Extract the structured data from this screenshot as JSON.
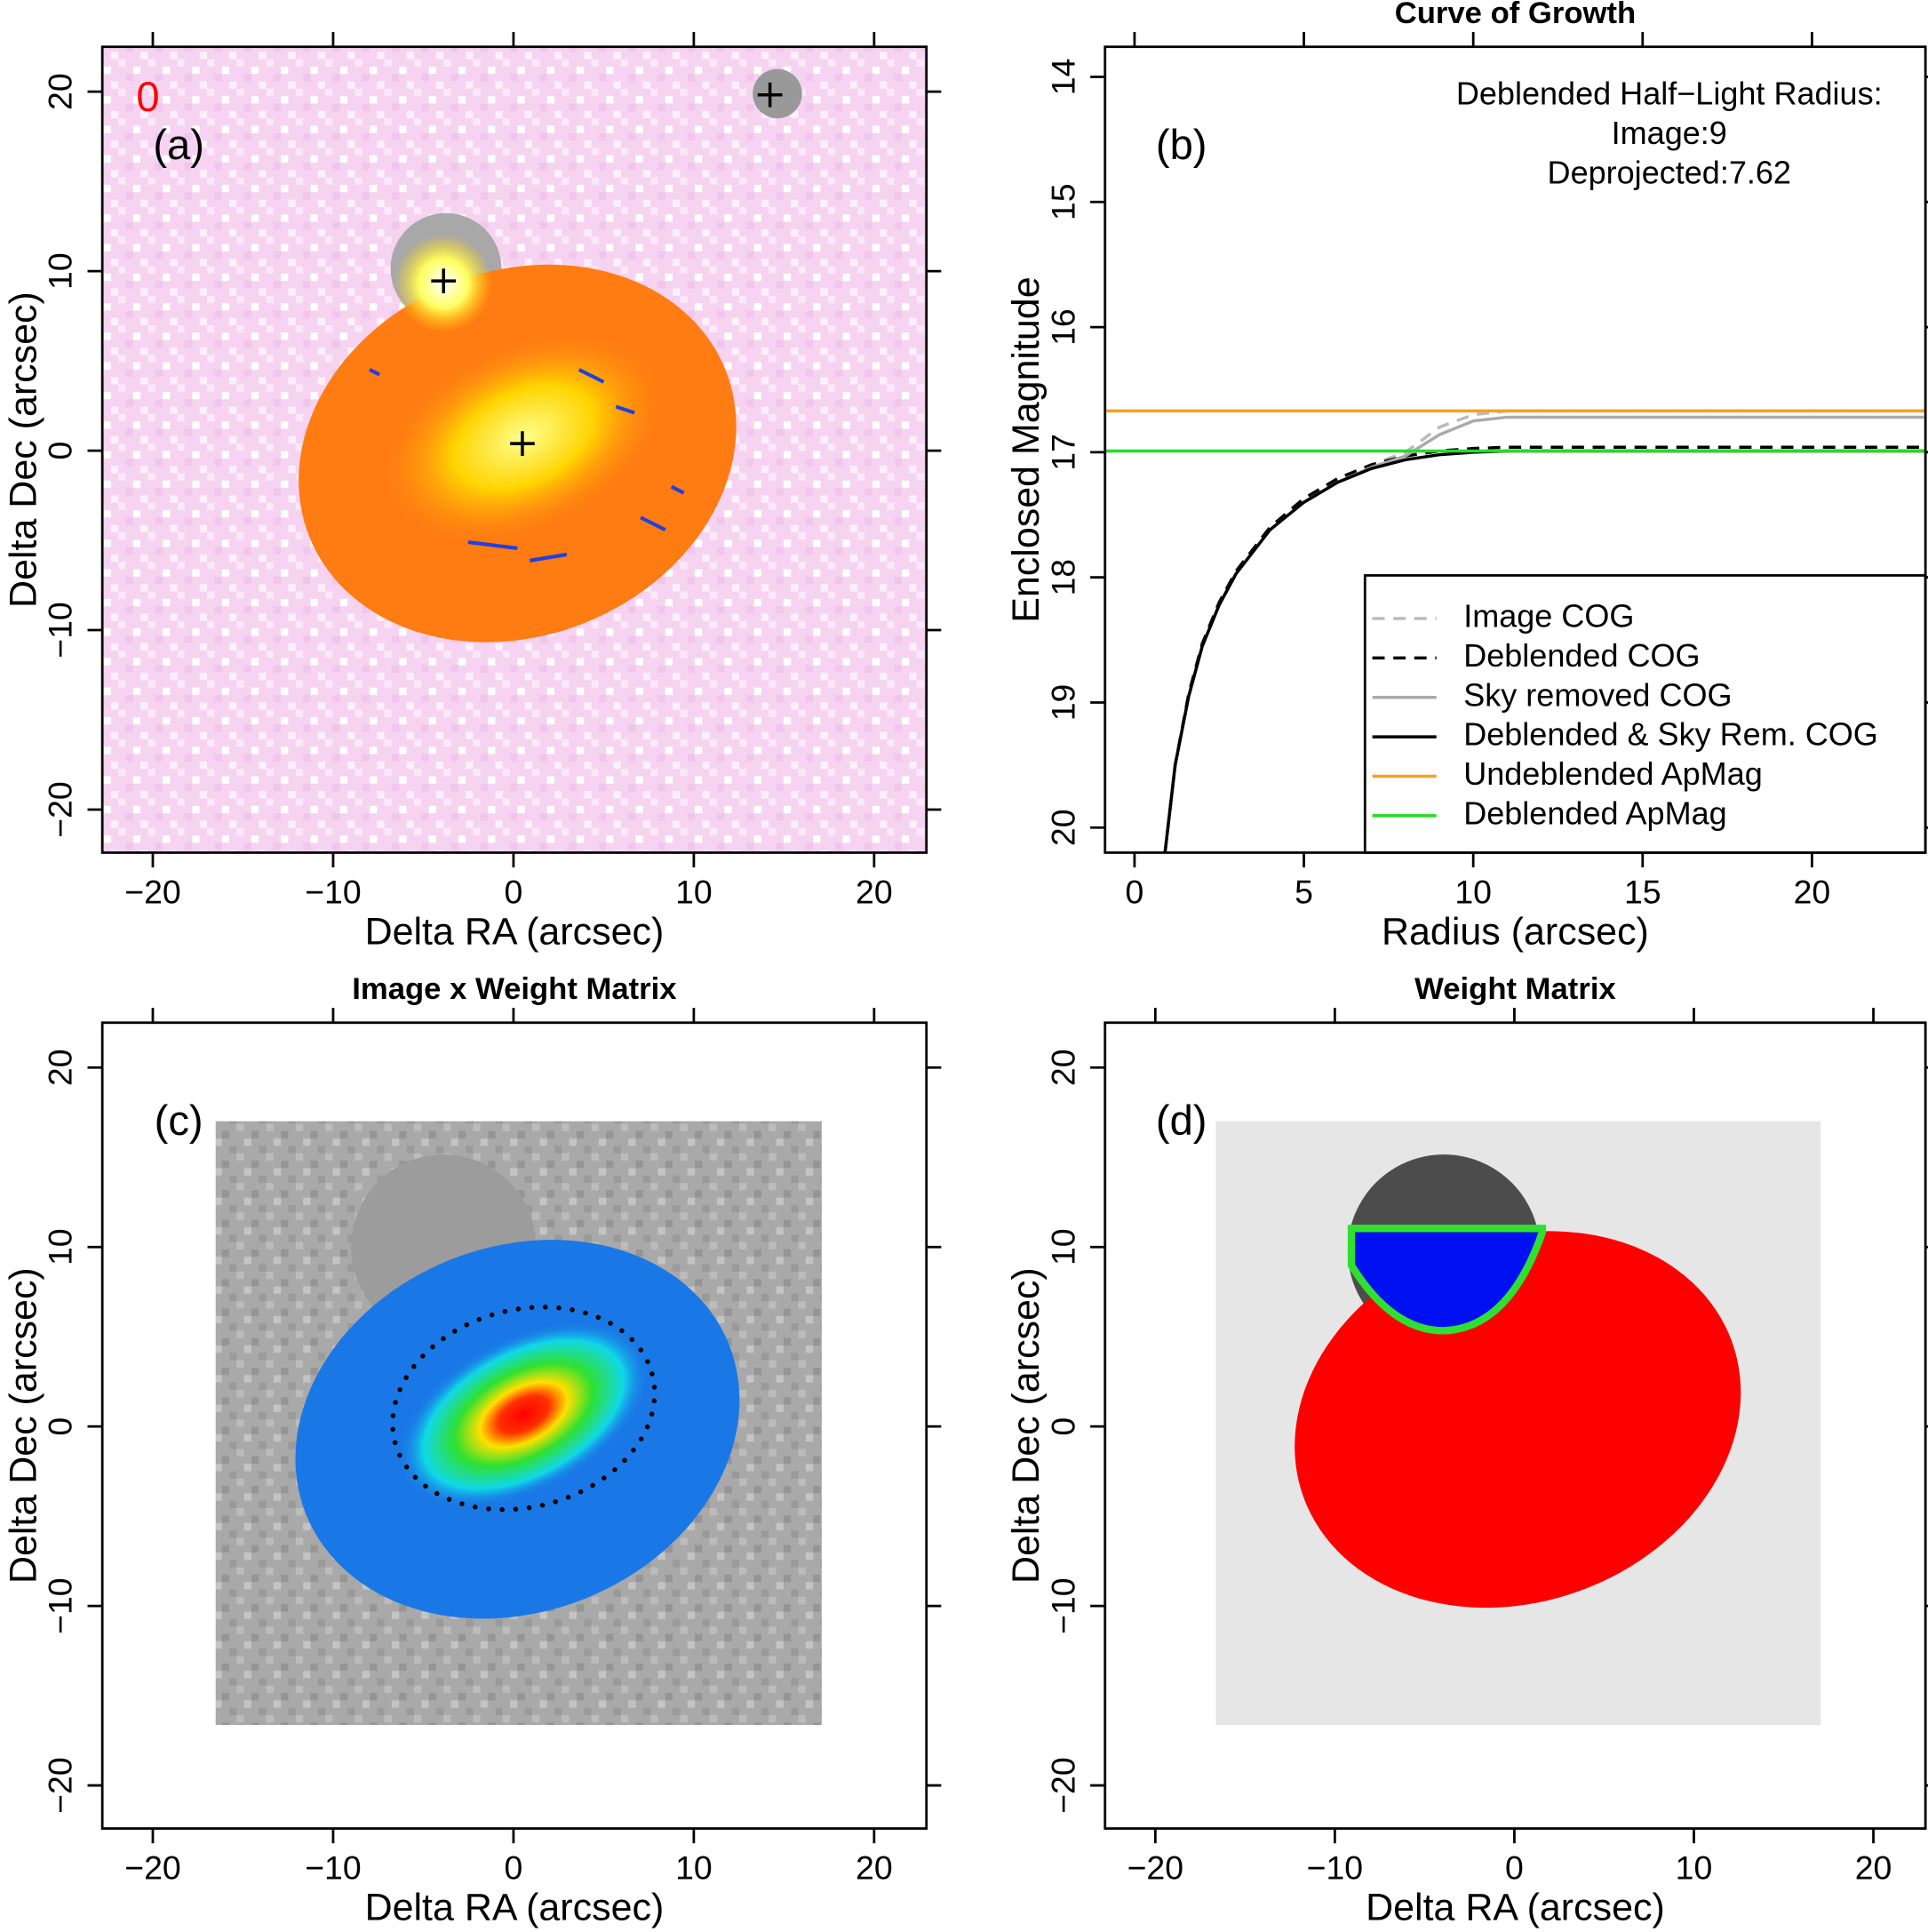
{
  "chart_data": [
    {
      "type": "image",
      "panel_label": "(a)",
      "annotation": "0",
      "xlabel": "Delta RA (arcsec)",
      "ylabel": "Delta Dec (arcsec)",
      "xlim": [
        -22.8,
        22.9
      ],
      "ylim": [
        -22.4,
        22.5
      ],
      "xticks": [
        {
          "value": -20,
          "label": "−20"
        },
        {
          "value": -10,
          "label": "−10"
        },
        0,
        10,
        20
      ],
      "yticks": [
        {
          "value": -20,
          "label": "−20"
        },
        {
          "value": -10,
          "label": "−10"
        },
        0,
        10,
        20
      ]
    },
    {
      "type": "line",
      "title": "Curve of Growth",
      "panel_label": "(b)",
      "annotations": [
        "Deblended Half−Light Radius:",
        "Image:9",
        "Deprojected:7.62"
      ],
      "xlabel": "Radius (arcsec)",
      "ylabel": "Enclosed Magnitude",
      "xlim": [
        -0.87,
        23.35
      ],
      "ylim": [
        20.2,
        13.76
      ],
      "xticks": [
        0,
        5,
        10,
        15,
        20
      ],
      "yticks": [
        14,
        15,
        16,
        17,
        18,
        19,
        20
      ],
      "legend": "lower right",
      "x": [
        0.9,
        1.2,
        1.6,
        2,
        2.5,
        3,
        4,
        5,
        6,
        7,
        8,
        9,
        10,
        11,
        12,
        15,
        20,
        23.3
      ],
      "series": [
        {
          "name": "Image COG",
          "color": "#bbbbbb",
          "dashed": true,
          "values": [
            20.2,
            19.5,
            18.93,
            18.53,
            18.2,
            17.95,
            17.6,
            17.37,
            17.21,
            17.1,
            17.0,
            16.8,
            16.7,
            16.67,
            16.67,
            16.67,
            16.67,
            16.67
          ]
        },
        {
          "name": "Deblended COG",
          "color": "#000000",
          "dashed": true,
          "values": [
            20.2,
            19.5,
            18.93,
            18.53,
            18.2,
            17.95,
            17.6,
            17.37,
            17.21,
            17.1,
            17.03,
            16.99,
            16.97,
            16.96,
            16.96,
            16.96,
            16.96,
            16.96
          ]
        },
        {
          "name": "Sky removed COG",
          "color": "#aaaaaa",
          "dashed": false,
          "values": [
            20.2,
            19.5,
            18.95,
            18.55,
            18.22,
            17.97,
            17.62,
            17.4,
            17.24,
            17.12,
            17.03,
            16.86,
            16.75,
            16.72,
            16.72,
            16.72,
            16.72,
            16.72
          ]
        },
        {
          "name": "Deblended & Sky Rem. COG",
          "color": "#000000",
          "dashed": false,
          "values": [
            20.2,
            19.5,
            18.95,
            18.55,
            18.22,
            17.97,
            17.62,
            17.4,
            17.24,
            17.13,
            17.06,
            17.02,
            17.0,
            16.99,
            16.99,
            16.99,
            16.99,
            16.99
          ]
        },
        {
          "name": "Undeblended ApMag",
          "color": "#f5a21e",
          "dashed": false,
          "value": 16.67
        },
        {
          "name": "Deblended ApMag",
          "color": "#22dd22",
          "dashed": false,
          "value": 16.99
        }
      ]
    },
    {
      "type": "image",
      "title": "Image x Weight Matrix",
      "panel_label": "(c)",
      "xlabel": "Delta RA (arcsec)",
      "ylabel": "Delta Dec (arcsec)",
      "xlim": [
        -22.8,
        22.9
      ],
      "ylim": [
        -22.4,
        22.5
      ],
      "xticks": [
        {
          "value": -20,
          "label": "−20"
        },
        {
          "value": -10,
          "label": "−10"
        },
        0,
        10,
        20
      ],
      "yticks": [
        {
          "value": -20,
          "label": "−20"
        },
        {
          "value": -10,
          "label": "−10"
        },
        0,
        10,
        20
      ]
    },
    {
      "type": "image",
      "title": "Weight Matrix",
      "panel_label": "(d)",
      "xlabel": "Delta RA (arcsec)",
      "ylabel": "Delta Dec (arcsec)",
      "xlim": [
        -22.8,
        22.9
      ],
      "ylim": [
        -22.4,
        22.5
      ],
      "xticks": [
        {
          "value": -20,
          "label": "−20"
        },
        {
          "value": -10,
          "label": "−10"
        },
        0,
        10,
        20
      ],
      "yticks": [
        {
          "value": -20,
          "label": "−20"
        },
        {
          "value": -10,
          "label": "−10"
        },
        0,
        10,
        20
      ]
    }
  ]
}
